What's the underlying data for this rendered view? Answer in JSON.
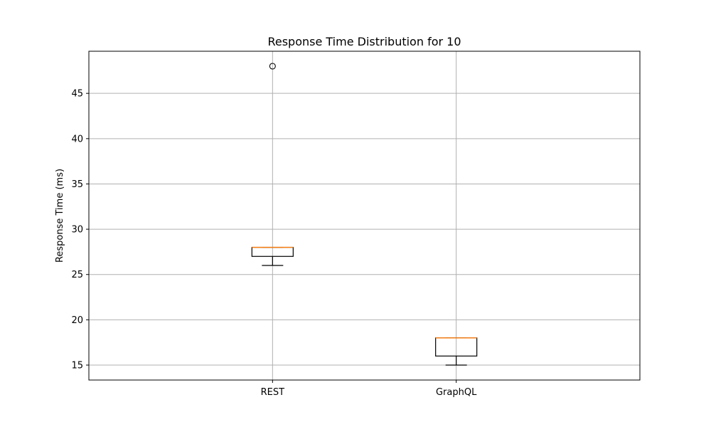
{
  "chart_data": {
    "type": "box",
    "title": "Response Time Distribution for 10",
    "xlabel": "",
    "ylabel": "Response Time (ms)",
    "categories": [
      "REST",
      "GraphQL"
    ],
    "boxes": [
      {
        "category": "REST",
        "whisker_low": 26,
        "q1": 27,
        "median": 28,
        "q3": 28,
        "whisker_high": 28,
        "outliers": [
          48
        ]
      },
      {
        "category": "GraphQL",
        "whisker_low": 15,
        "q1": 16,
        "median": 18,
        "q3": 18,
        "whisker_high": 18,
        "outliers": []
      }
    ],
    "ylim": [
      13.35,
      49.65
    ],
    "yticks": [
      15,
      20,
      25,
      30,
      35,
      40,
      45
    ],
    "grid": true,
    "colors": {
      "box": "#000000",
      "median": "#ff7f0e",
      "grid": "#b0b0b0",
      "outlier_edge": "#000000"
    }
  }
}
